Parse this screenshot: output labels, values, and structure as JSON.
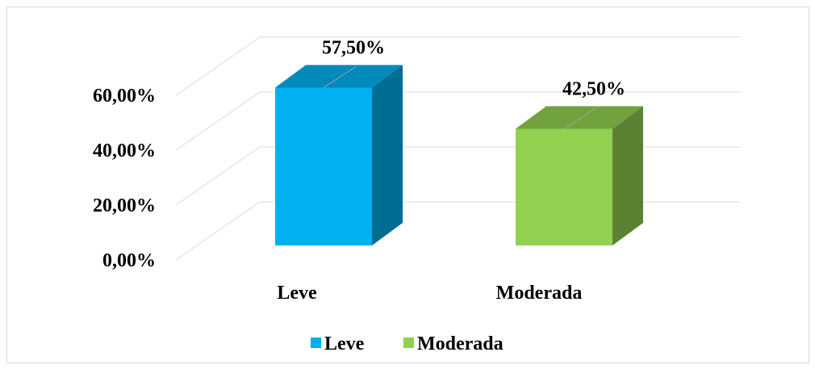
{
  "chart_data": {
    "type": "bar3d",
    "categories": [
      "Leve",
      "Moderada"
    ],
    "values": [
      57.5,
      42.5
    ],
    "value_labels": [
      "57,50%",
      "42,50%"
    ],
    "colors": [
      "#00b0f0",
      "#92d050"
    ],
    "ylim": [
      0,
      60
    ],
    "yticks": [
      {
        "value": 0,
        "label": "0,00%"
      },
      {
        "value": 20,
        "label": "20,00%"
      },
      {
        "value": 40,
        "label": "40,00%"
      },
      {
        "value": 60,
        "label": "60,00%"
      }
    ],
    "grid": true,
    "legend": "bottom"
  }
}
